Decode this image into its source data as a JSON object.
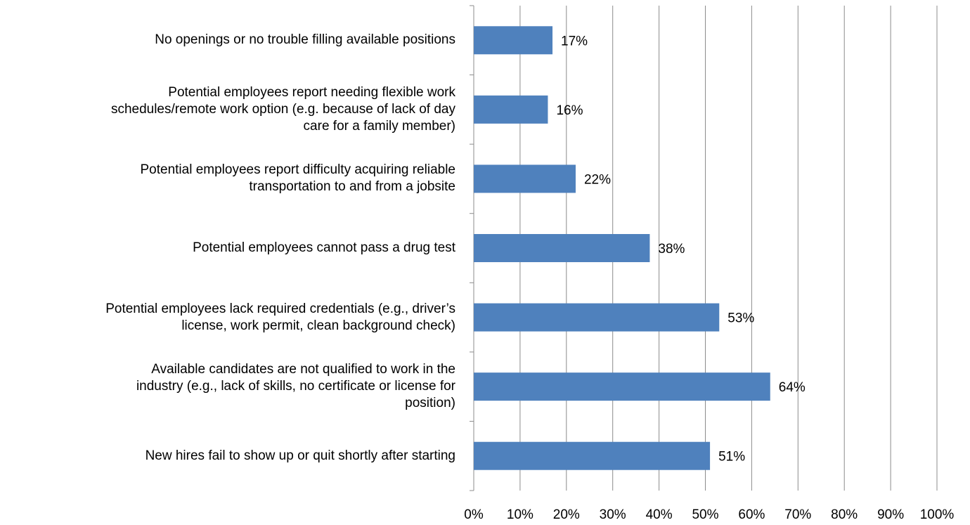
{
  "chart_data": {
    "type": "bar",
    "orientation": "horizontal",
    "categories": [
      "No openings or no trouble filling available positions",
      "Potential employees report needing flexible work\nschedules/remote work option (e.g. because of lack of day\ncare for a family member)",
      "Potential employees report difficulty acquiring reliable\ntransportation to and from a jobsite",
      "Potential employees cannot pass a drug test",
      "Potential employees lack required credentials (e.g., driver’s\nlicense, work permit, clean background check)",
      "Available candidates are not qualified to work in the\nindustry (e.g., lack of skills, no certificate or license for\nposition)",
      "New hires fail to show up or quit shortly after starting"
    ],
    "values": [
      17,
      16,
      22,
      38,
      53,
      64,
      51
    ],
    "value_labels": [
      "17%",
      "16%",
      "22%",
      "38%",
      "53%",
      "64%",
      "51%"
    ],
    "color": "#4f81bd",
    "xlim": [
      0,
      100
    ],
    "xticks": [
      {
        "value": 0,
        "label": "0%"
      },
      {
        "value": 10,
        "label": "10%"
      },
      {
        "value": 20,
        "label": "20%"
      },
      {
        "value": 30,
        "label": "30%"
      },
      {
        "value": 40,
        "label": "40%"
      },
      {
        "value": 50,
        "label": "50%"
      },
      {
        "value": 60,
        "label": "60%"
      },
      {
        "value": 70,
        "label": "70%"
      },
      {
        "value": 80,
        "label": "80%"
      },
      {
        "value": 90,
        "label": "90%"
      },
      {
        "value": 100,
        "label": "100%"
      }
    ],
    "grid": true
  }
}
